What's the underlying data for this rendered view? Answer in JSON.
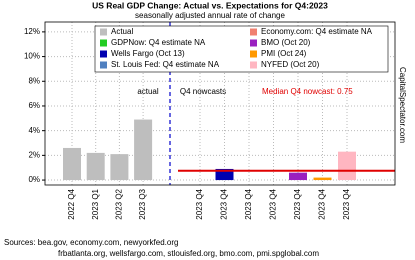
{
  "chart_data": {
    "type": "bar",
    "title": "US Real GDP Change: Actual vs. Expectations for Q4:2023",
    "subtitle": "seasonally adjusted annual rate of change",
    "categories": [
      "2022 Q4",
      "2023 Q1",
      "2023 Q2",
      "2023 Q3",
      "2023 Q4",
      "2023 Q4",
      "2023 Q4",
      "2023 Q4",
      "2023 Q4",
      "2023 Q4",
      "2023 Q4"
    ],
    "series": [
      {
        "name": "Actual",
        "color": "#bebebe",
        "values": [
          2.6,
          2.2,
          2.1,
          4.9,
          null,
          null,
          null,
          null,
          null,
          null,
          null
        ]
      },
      {
        "name": "GDPNow: Q4 estimate NA",
        "color": "#22cc22",
        "values": [
          null,
          null,
          null,
          null,
          null,
          null,
          null,
          null,
          null,
          null,
          null
        ]
      },
      {
        "name": "Wells Fargo (Oct 13)",
        "color": "#0000b0",
        "values": [
          null,
          null,
          null,
          null,
          null,
          0.9,
          null,
          null,
          null,
          null,
          null
        ]
      },
      {
        "name": "St. Louis Fed: Q4 estimate NA",
        "color": "#4f80c0",
        "values": [
          null,
          null,
          null,
          null,
          null,
          null,
          null,
          null,
          null,
          null,
          null
        ]
      },
      {
        "name": "Economy.com: Q4 estimate NA",
        "color": "#f08070",
        "values": [
          null,
          null,
          null,
          null,
          null,
          null,
          null,
          null,
          null,
          null,
          null
        ]
      },
      {
        "name": "BMO (Oct 20)",
        "color": "#9a20c0",
        "values": [
          null,
          null,
          null,
          null,
          null,
          null,
          null,
          null,
          0.6,
          null,
          null
        ]
      },
      {
        "name": "PMI (Oct 24)",
        "color": "#ff9900",
        "values": [
          null,
          null,
          null,
          null,
          null,
          null,
          null,
          null,
          null,
          0.2,
          null
        ]
      },
      {
        "name": "NYFED (Oct 20)",
        "color": "#ffb6c1",
        "values": [
          null,
          null,
          null,
          null,
          null,
          null,
          null,
          null,
          null,
          null,
          2.3
        ]
      }
    ],
    "ylim": [
      -0.4,
      12.8
    ],
    "yticks": [
      {
        "value": 0,
        "label": "0%"
      },
      {
        "value": 2,
        "label": "2%"
      },
      {
        "value": 4,
        "label": "4%"
      },
      {
        "value": 6,
        "label": "6%"
      },
      {
        "value": 8,
        "label": "8%"
      },
      {
        "value": 10,
        "label": "10%"
      },
      {
        "value": 12,
        "label": "12%"
      }
    ],
    "grid": true,
    "median": {
      "value": 0.75,
      "label": "Median Q4 nowcast: 0.75",
      "color": "#e00000"
    },
    "annotations": [
      "actual",
      "Q4 nowcasts"
    ],
    "watermark": "CapitalSpectator.com",
    "sources": [
      "Sources: bea.gov, economy.com, newyorkfed.org",
      "frbatlanta.org, wellsfargo.com, stlouisfed.org, bmo.com, pmi.spglobal.com"
    ]
  }
}
